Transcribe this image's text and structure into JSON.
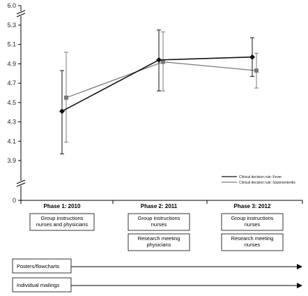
{
  "chart_data": {
    "type": "line",
    "categories": [
      "Phase 1: 2010",
      "Phase 2: 2011",
      "Phase 3: 2012"
    ],
    "ylim": [
      0,
      6.0
    ],
    "yticks": [
      "0",
      "3.9",
      "4.1",
      "4.3",
      "4.5",
      "4.7",
      "4.9",
      "5.1",
      "5.3",
      "6.0"
    ],
    "axis_break": true,
    "grid": false,
    "legend_position": "right, below the lines",
    "series": [
      {
        "name": "Clinical decision rule: Fever",
        "color": "#111111",
        "marker": "diamond",
        "values": [
          4.41,
          4.94,
          4.97
        ],
        "err_low": [
          3.97,
          4.62,
          4.77
        ],
        "err_high": [
          4.83,
          5.25,
          5.17
        ]
      },
      {
        "name": "Clinical decision rule: Gastroenteritis",
        "color": "#7a7a7a",
        "marker": "square",
        "values": [
          4.55,
          4.92,
          4.83
        ],
        "err_low": [
          4.09,
          4.62,
          4.65
        ],
        "err_high": [
          5.02,
          5.23,
          5.01
        ]
      }
    ],
    "phase_boxes": [
      [
        [
          "Group instructions",
          "nurses and physicians"
        ]
      ],
      [
        [
          "Group instructions",
          "nurses"
        ],
        [
          "Research meeting",
          "physicians"
        ]
      ],
      [
        [
          "Group instructions",
          "nurses"
        ],
        [
          "Research meeting",
          "nurses"
        ]
      ]
    ],
    "interventions": [
      "Posters/flowcharts",
      "Individual mailings"
    ]
  }
}
